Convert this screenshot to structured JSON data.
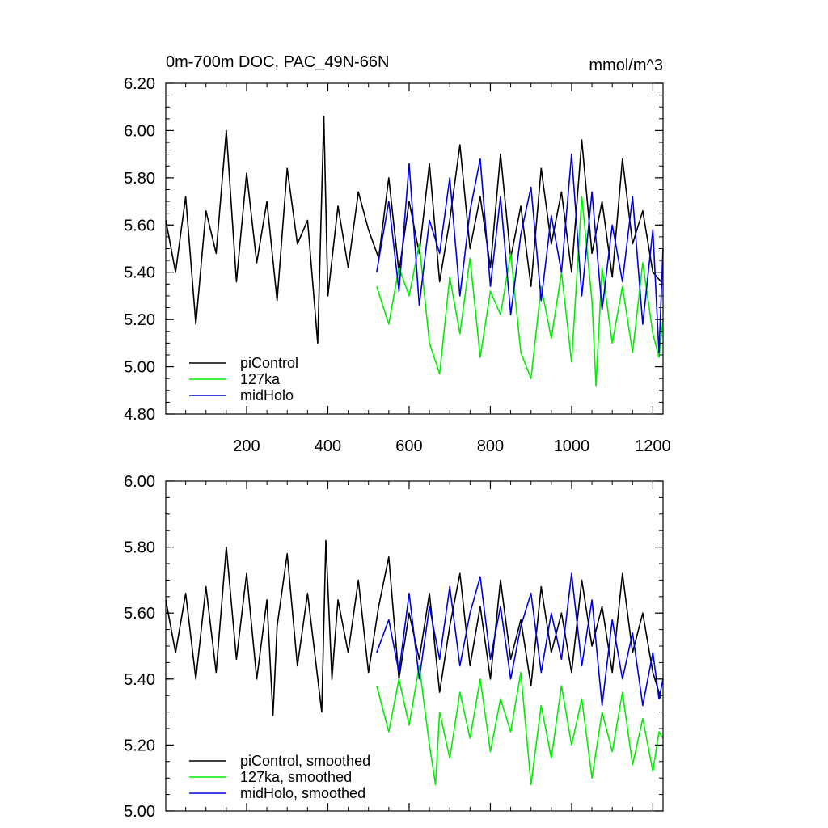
{
  "chart_data": [
    {
      "type": "line",
      "title": "0m-700m DOC, PAC_49N-66N",
      "units": "mmol/m^3",
      "xlim": [
        1,
        1225
      ],
      "ylim": [
        4.8,
        6.2
      ],
      "xticks": [
        200,
        400,
        600,
        800,
        1000,
        1200
      ],
      "yticks": [
        "4.80",
        "5.00",
        "5.20",
        "5.40",
        "5.60",
        "5.80",
        "6.00",
        "6.20"
      ],
      "legend_position": "bottom-left",
      "series": [
        {
          "name": "piControl",
          "color": "#000000",
          "x": [
            1,
            25,
            50,
            75,
            100,
            125,
            150,
            175,
            200,
            225,
            250,
            275,
            300,
            325,
            350,
            375,
            390,
            400,
            425,
            450,
            475,
            500,
            525,
            550,
            575,
            600,
            625,
            650,
            675,
            700,
            725,
            750,
            775,
            800,
            825,
            850,
            875,
            900,
            925,
            950,
            975,
            1000,
            1025,
            1050,
            1075,
            1100,
            1125,
            1150,
            1175,
            1200,
            1220
          ],
          "y": [
            5.62,
            5.4,
            5.72,
            5.18,
            5.66,
            5.48,
            6.0,
            5.36,
            5.82,
            5.44,
            5.7,
            5.28,
            5.84,
            5.52,
            5.62,
            5.1,
            6.06,
            5.3,
            5.68,
            5.42,
            5.74,
            5.58,
            5.46,
            5.8,
            5.4,
            5.7,
            5.48,
            5.86,
            5.36,
            5.62,
            5.94,
            5.5,
            5.72,
            5.42,
            5.9,
            5.46,
            5.68,
            5.34,
            5.84,
            5.52,
            5.74,
            5.4,
            5.96,
            5.48,
            5.7,
            5.38,
            5.88,
            5.52,
            5.66,
            5.4,
            5.36
          ]
        },
        {
          "name": "127ka",
          "color": "#00ee00",
          "x": [
            520,
            550,
            575,
            600,
            625,
            650,
            675,
            700,
            725,
            750,
            775,
            800,
            825,
            850,
            875,
            900,
            925,
            950,
            975,
            1000,
            1025,
            1050,
            1060,
            1075,
            1100,
            1125,
            1150,
            1175,
            1200,
            1215,
            1225
          ],
          "y": [
            5.34,
            5.18,
            5.42,
            5.3,
            5.52,
            5.1,
            4.97,
            5.38,
            5.14,
            5.46,
            5.04,
            5.32,
            5.22,
            5.48,
            5.06,
            4.95,
            5.34,
            5.12,
            5.4,
            5.02,
            5.72,
            5.28,
            4.92,
            5.42,
            5.1,
            5.34,
            5.06,
            5.44,
            5.14,
            5.04,
            5.2
          ]
        },
        {
          "name": "midHolo",
          "color": "#0000dd",
          "x": [
            520,
            550,
            575,
            600,
            625,
            650,
            675,
            700,
            725,
            750,
            775,
            800,
            825,
            850,
            875,
            900,
            925,
            950,
            975,
            1000,
            1025,
            1050,
            1075,
            1100,
            1125,
            1150,
            1175,
            1200,
            1215,
            1225
          ],
          "y": [
            5.4,
            5.7,
            5.32,
            5.86,
            5.26,
            5.62,
            5.48,
            5.8,
            5.3,
            5.66,
            5.88,
            5.34,
            5.72,
            5.22,
            5.56,
            5.76,
            5.28,
            5.64,
            5.4,
            5.9,
            5.3,
            5.74,
            5.24,
            5.6,
            5.36,
            5.72,
            5.18,
            5.58,
            5.06,
            5.5
          ]
        }
      ]
    },
    {
      "type": "line",
      "xlim": [
        1,
        1225
      ],
      "ylim": [
        5.0,
        6.0
      ],
      "yticks": [
        "5.00",
        "5.20",
        "5.40",
        "5.60",
        "5.80",
        "6.00"
      ],
      "legend_position": "bottom-left",
      "series": [
        {
          "name": "piControl, smoothed",
          "color": "#000000",
          "x": [
            1,
            25,
            50,
            75,
            100,
            125,
            150,
            175,
            200,
            225,
            250,
            265,
            275,
            300,
            325,
            350,
            385,
            395,
            410,
            425,
            450,
            475,
            500,
            525,
            550,
            575,
            600,
            625,
            650,
            675,
            700,
            725,
            750,
            775,
            800,
            825,
            850,
            875,
            900,
            925,
            950,
            975,
            1000,
            1025,
            1050,
            1075,
            1100,
            1125,
            1150,
            1175,
            1200,
            1220
          ],
          "y": [
            5.64,
            5.48,
            5.66,
            5.4,
            5.68,
            5.42,
            5.8,
            5.46,
            5.72,
            5.4,
            5.64,
            5.29,
            5.56,
            5.78,
            5.44,
            5.66,
            5.3,
            5.82,
            5.4,
            5.64,
            5.48,
            5.7,
            5.42,
            5.62,
            5.77,
            5.4,
            5.6,
            5.46,
            5.66,
            5.36,
            5.56,
            5.72,
            5.44,
            5.62,
            5.4,
            5.7,
            5.46,
            5.58,
            5.38,
            5.68,
            5.48,
            5.6,
            5.42,
            5.7,
            5.5,
            5.62,
            5.42,
            5.72,
            5.48,
            5.6,
            5.42,
            5.34
          ]
        },
        {
          "name": "127ka, smoothed",
          "color": "#00ee00",
          "x": [
            520,
            550,
            575,
            600,
            625,
            650,
            665,
            675,
            700,
            725,
            750,
            775,
            800,
            825,
            850,
            875,
            900,
            925,
            950,
            975,
            1000,
            1025,
            1050,
            1075,
            1100,
            1125,
            1150,
            1175,
            1200,
            1215,
            1225
          ],
          "y": [
            5.38,
            5.24,
            5.4,
            5.26,
            5.44,
            5.2,
            5.08,
            5.3,
            5.16,
            5.36,
            5.22,
            5.4,
            5.18,
            5.34,
            5.24,
            5.42,
            5.08,
            5.32,
            5.16,
            5.38,
            5.2,
            5.34,
            5.1,
            5.3,
            5.18,
            5.36,
            5.14,
            5.28,
            5.12,
            5.24,
            5.22
          ]
        },
        {
          "name": "midHolo, smoothed",
          "color": "#0000dd",
          "x": [
            520,
            550,
            575,
            600,
            625,
            650,
            675,
            700,
            725,
            750,
            775,
            800,
            825,
            850,
            875,
            900,
            925,
            950,
            975,
            1000,
            1025,
            1050,
            1075,
            1100,
            1125,
            1150,
            1175,
            1200,
            1215,
            1225
          ],
          "y": [
            5.48,
            5.58,
            5.42,
            5.66,
            5.4,
            5.62,
            5.46,
            5.68,
            5.44,
            5.6,
            5.71,
            5.46,
            5.62,
            5.4,
            5.56,
            5.66,
            5.42,
            5.6,
            5.46,
            5.72,
            5.44,
            5.64,
            5.32,
            5.58,
            5.4,
            5.54,
            5.32,
            5.48,
            5.34,
            5.4
          ]
        }
      ]
    }
  ]
}
